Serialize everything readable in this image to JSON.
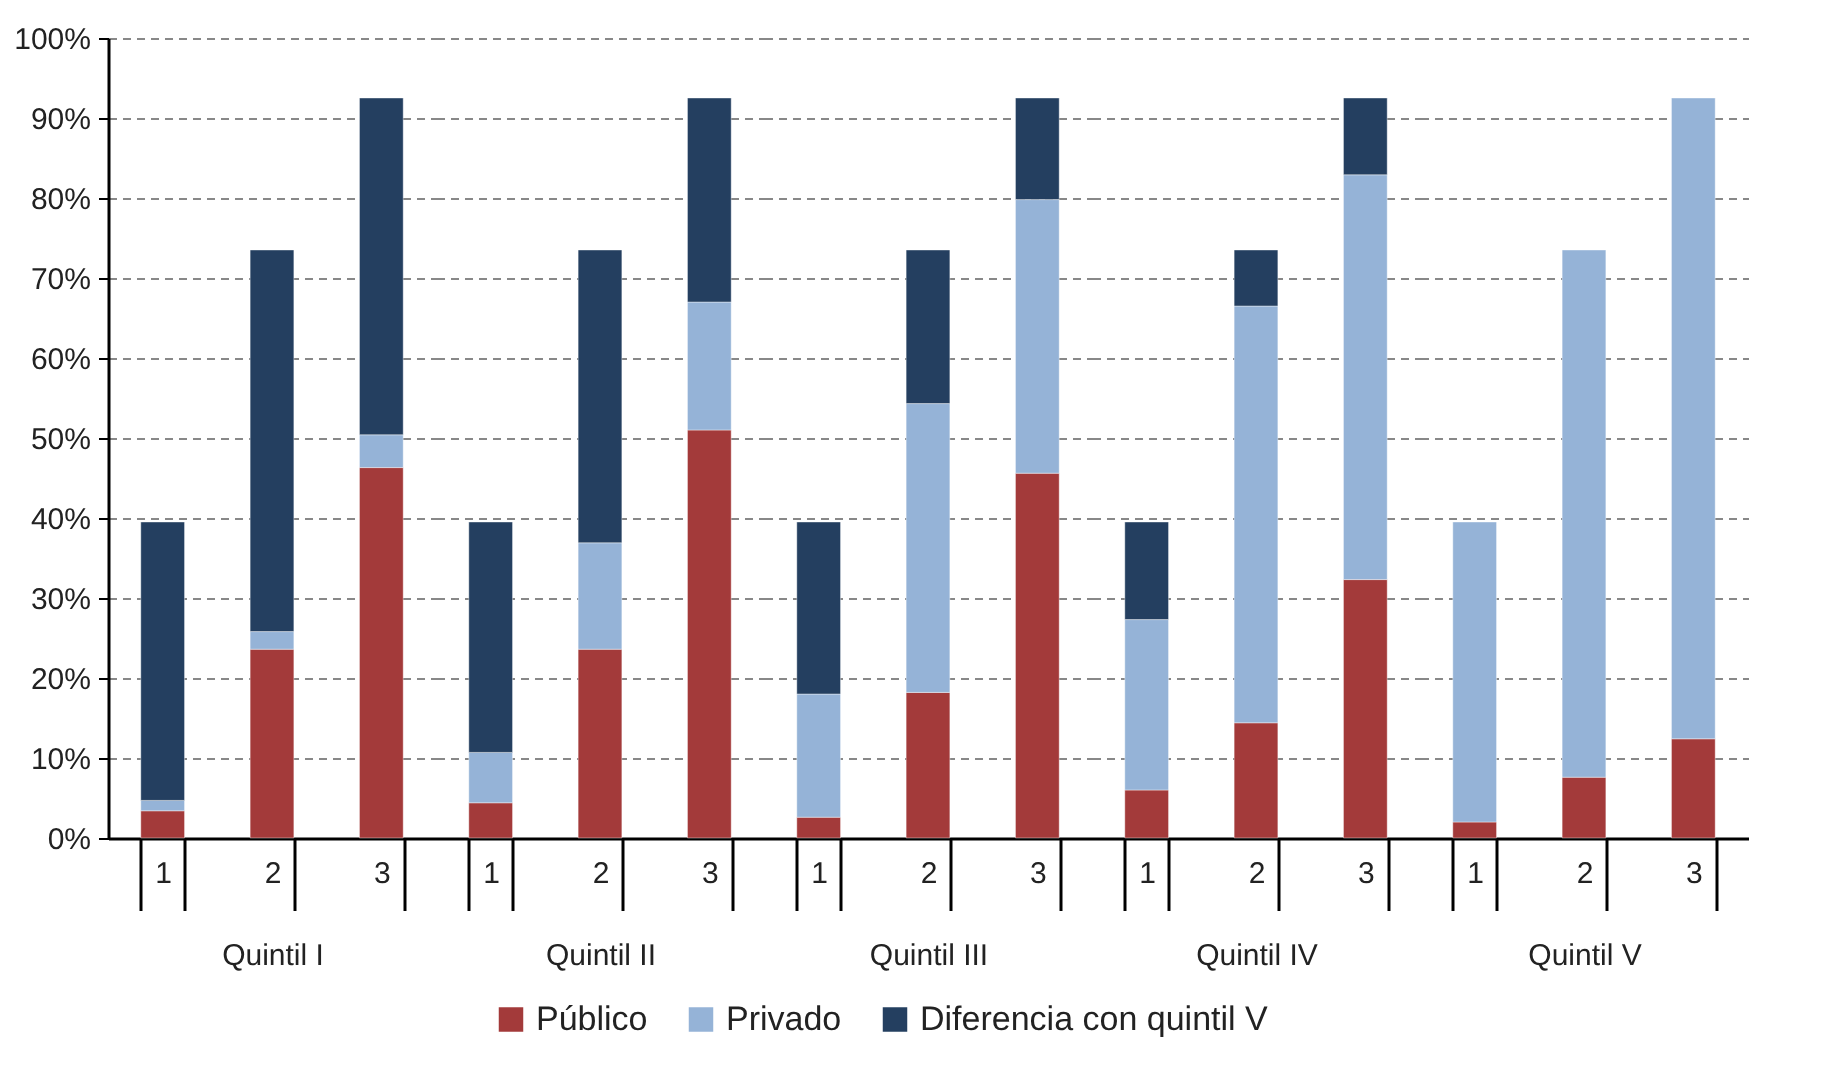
{
  "chart_data": [
    {
      "type": "bar",
      "stacked": true,
      "xlabel": "Quintil I",
      "categories": [
        "1",
        "2",
        "3"
      ],
      "ylim": [
        0,
        100
      ],
      "yticks": [
        {
          "value": 0,
          "label": "0%"
        },
        {
          "value": 10,
          "label": "10%"
        },
        {
          "value": 20,
          "label": "20%"
        },
        {
          "value": 30,
          "label": "30%"
        },
        {
          "value": 40,
          "label": "40%"
        },
        {
          "value": 50,
          "label": "50%"
        },
        {
          "value": 60,
          "label": "60%"
        },
        {
          "value": 70,
          "label": "70%"
        },
        {
          "value": 80,
          "label": "80%"
        },
        {
          "value": 90,
          "label": "90%"
        },
        {
          "value": 100,
          "label": "100%"
        }
      ],
      "grid": "y",
      "legend": "bottom",
      "series": [
        {
          "name": "Público",
          "color": "#a33a3a",
          "values": [
            3.4,
            23.6,
            46.3
          ]
        },
        {
          "name": "Privado",
          "color": "#95b3d7",
          "values": [
            1.3,
            2.2,
            4.1
          ]
        },
        {
          "name": "Diferencia con quintil V",
          "color": "#243f60",
          "values": [
            34.8,
            47.7,
            42.1
          ]
        }
      ]
    },
    {
      "type": "bar",
      "stacked": true,
      "xlabel": "Quintil II",
      "categories": [
        "1",
        "2",
        "3"
      ],
      "ylim": [
        0,
        100
      ],
      "grid": "y",
      "legend": "bottom",
      "tick_labels": "x",
      "series": [
        {
          "name": "Público",
          "color": "#a33a3a",
          "values": [
            4.4,
            23.6,
            51.0
          ]
        },
        {
          "name": "Privado",
          "color": "#95b3d7",
          "values": [
            6.3,
            13.3,
            16.0
          ]
        },
        {
          "name": "Diferencia con quintil V",
          "color": "#243f60",
          "values": [
            28.8,
            36.6,
            25.5
          ]
        }
      ]
    },
    {
      "type": "bar",
      "stacked": true,
      "xlabel": "Quintil III",
      "categories": [
        "1",
        "2",
        "3"
      ],
      "ylim": [
        0,
        100
      ],
      "grid": "y",
      "legend": "bottom",
      "tick_labels": "x",
      "series": [
        {
          "name": "Público",
          "color": "#a33a3a",
          "values": [
            2.6,
            18.2,
            45.6
          ]
        },
        {
          "name": "Privado",
          "color": "#95b3d7",
          "values": [
            15.4,
            36.1,
            34.2
          ]
        },
        {
          "name": "Diferencia con quintil V",
          "color": "#243f60",
          "values": [
            21.5,
            19.2,
            12.7
          ]
        }
      ]
    },
    {
      "type": "bar",
      "stacked": true,
      "xlabel": "Quintil IV",
      "categories": [
        "1",
        "2",
        "3"
      ],
      "ylim": [
        0,
        100
      ],
      "grid": "y",
      "legend": "bottom",
      "tick_labels": "x",
      "series": [
        {
          "name": "Público",
          "color": "#a33a3a",
          "values": [
            6.0,
            14.4,
            32.3
          ]
        },
        {
          "name": "Privado",
          "color": "#95b3d7",
          "values": [
            21.3,
            52.1,
            50.6
          ]
        },
        {
          "name": "Diferencia con quintil V",
          "color": "#243f60",
          "values": [
            12.2,
            7.0,
            9.6
          ]
        }
      ]
    },
    {
      "type": "bar",
      "stacked": true,
      "xlabel": "Quintil V",
      "categories": [
        "1",
        "2",
        "3"
      ],
      "ylim": [
        0,
        100
      ],
      "grid": "y",
      "legend": "bottom",
      "tick_labels": "x",
      "series": [
        {
          "name": "Público",
          "color": "#a33a3a",
          "values": [
            2.0,
            7.6,
            12.4
          ]
        },
        {
          "name": "Privado",
          "color": "#95b3d7",
          "values": [
            37.5,
            65.9,
            80.1
          ]
        },
        {
          "name": "Diferencia con quintil V",
          "color": "#243f60",
          "values": [
            null,
            null,
            null
          ]
        }
      ]
    }
  ]
}
